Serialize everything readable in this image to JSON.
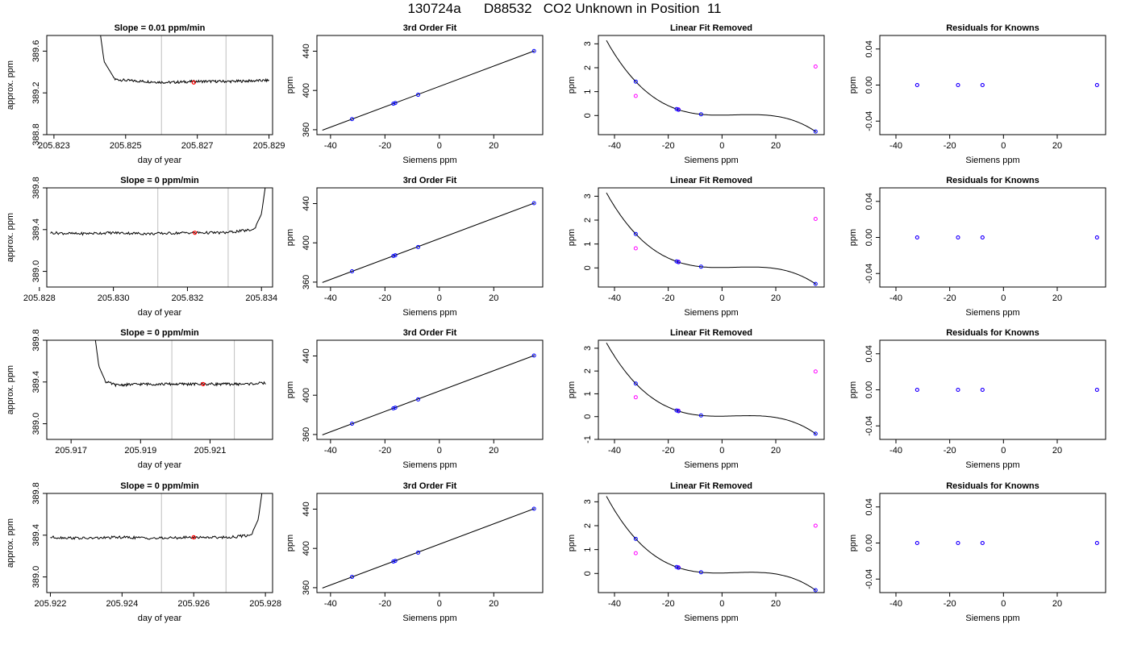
{
  "figure": {
    "title": "130724a      D88532   CO2 Unknown in Position  11"
  },
  "chart_data": [
    {
      "type": "line",
      "title": "Slope =  0.01  ppm/min",
      "xlabel": "day of year",
      "ylabel": "approx. ppm",
      "xlim": [
        205.8228,
        205.8291
      ],
      "ylim": [
        388.8,
        389.75
      ],
      "xticks": [
        "205.823",
        "205.825",
        "205.827",
        "205.829"
      ],
      "yticks": [
        "388.8",
        "389.2",
        "389.6"
      ],
      "vlines": [
        205.826,
        205.8278
      ],
      "flat_level": 389.3,
      "transient": "start",
      "marker": {
        "x": 205.8269,
        "y": 389.3
      },
      "x": [
        205.8243,
        205.8244,
        205.8247,
        205.825,
        205.8255,
        205.8262,
        205.827,
        205.828,
        205.829
      ],
      "y": [
        389.75,
        389.5,
        389.33,
        389.32,
        389.31,
        389.3,
        389.31,
        389.31,
        389.32
      ]
    },
    {
      "type": "scatter+fit",
      "title": "3rd Order Fit",
      "xlabel": "Siemens ppm",
      "ylabel": "ppm",
      "xlim": [
        -45,
        38
      ],
      "ylim": [
        355,
        456
      ],
      "xticks": [
        "-40",
        "-20",
        "0",
        "20"
      ],
      "yticks": [
        "360",
        "400",
        "440"
      ],
      "points_x": [
        -32.1,
        -16.9,
        -16.2,
        -7.8,
        34.8
      ],
      "points_y": [
        370.8,
        386.5,
        387.2,
        395.6,
        440.2
      ],
      "fit_x_range": [
        -43,
        35
      ],
      "fit_y_range": [
        359.5,
        440.4
      ]
    },
    {
      "type": "scatter+fit",
      "title": "Linear Fit Removed",
      "xlabel": "Siemens ppm",
      "ylabel": "ppm",
      "xlim": [
        -46,
        38
      ],
      "ylim": [
        -0.8,
        3.35
      ],
      "xticks": [
        "-40",
        "-20",
        "0",
        "20"
      ],
      "yticks": [
        "0",
        "1",
        "2",
        "3"
      ],
      "points_x": [
        -32.1,
        -16.9,
        -16.2,
        -7.8,
        34.8
      ],
      "points_y": [
        1.42,
        0.27,
        0.24,
        0.05,
        -0.67
      ],
      "pink_x": [
        -32.1,
        -16.2,
        34.8
      ],
      "pink_y": [
        0.82,
        0.26,
        2.05
      ]
    },
    {
      "type": "scatter",
      "title": "Residuals for Knowns",
      "xlabel": "Siemens ppm",
      "ylabel": "ppm",
      "xlim": [
        -46,
        38
      ],
      "ylim": [
        -0.055,
        0.055
      ],
      "xticks": [
        "-40",
        "-20",
        "0",
        "20"
      ],
      "yticks": [
        "-0.04",
        "0.00",
        "0.04"
      ],
      "points_x": [
        -32.1,
        -16.9,
        -7.8,
        34.8
      ],
      "points_y": [
        0,
        0,
        0,
        0
      ]
    },
    {
      "type": "line",
      "title": "Slope =  0  ppm/min",
      "xlabel": "day of year",
      "ylabel": "approx. ppm",
      "xlim": [
        205.8282,
        205.8343
      ],
      "ylim": [
        388.85,
        389.8
      ],
      "xticks": [
        "205.828",
        "205.830",
        "205.832",
        "205.834"
      ],
      "yticks": [
        "389.0",
        "389.4",
        "389.8"
      ],
      "vlines": [
        205.8312,
        205.8331
      ],
      "flat_level": 389.37,
      "transient": "end",
      "marker": {
        "x": 205.8322,
        "y": 389.37
      },
      "x": [
        205.8283,
        205.829,
        205.83,
        205.831,
        205.832,
        205.833,
        205.8338,
        205.834,
        205.8341
      ],
      "y": [
        389.37,
        389.36,
        389.37,
        389.36,
        389.37,
        389.37,
        389.4,
        389.55,
        389.8
      ]
    },
    {
      "type": "scatter+fit",
      "title": "3rd Order Fit",
      "xlabel": "Siemens ppm",
      "ylabel": "ppm",
      "xlim": [
        -45,
        38
      ],
      "ylim": [
        355,
        456
      ],
      "xticks": [
        "-40",
        "-20",
        "0",
        "20"
      ],
      "yticks": [
        "360",
        "400",
        "440"
      ],
      "points_x": [
        -32.1,
        -16.9,
        -16.2,
        -7.8,
        34.8
      ],
      "points_y": [
        371.0,
        386.6,
        387.3,
        395.7,
        440.4
      ],
      "fit_x_range": [
        -43,
        35
      ],
      "fit_y_range": [
        359.6,
        440.6
      ]
    },
    {
      "type": "scatter+fit",
      "title": "Linear Fit Removed",
      "xlabel": "Siemens ppm",
      "ylabel": "ppm",
      "xlim": [
        -46,
        38
      ],
      "ylim": [
        -0.8,
        3.35
      ],
      "xticks": [
        "-40",
        "-20",
        "0",
        "20"
      ],
      "yticks": [
        "0",
        "1",
        "2",
        "3"
      ],
      "points_x": [
        -32.1,
        -16.9,
        -16.2,
        -7.8,
        34.8
      ],
      "points_y": [
        1.42,
        0.27,
        0.24,
        0.05,
        -0.67
      ],
      "pink_x": [
        -32.1,
        -16.2,
        34.8
      ],
      "pink_y": [
        0.82,
        0.26,
        2.05
      ]
    },
    {
      "type": "scatter",
      "title": "Residuals for Knowns",
      "xlabel": "Siemens ppm",
      "ylabel": "ppm",
      "xlim": [
        -46,
        38
      ],
      "ylim": [
        -0.055,
        0.055
      ],
      "xticks": [
        "-40",
        "-20",
        "0",
        "20"
      ],
      "yticks": [
        "-0.04",
        "0.00",
        "0.04"
      ],
      "points_x": [
        -32.1,
        -16.9,
        -7.8,
        34.8
      ],
      "points_y": [
        0,
        0,
        0,
        0
      ]
    },
    {
      "type": "line",
      "title": "Slope =  0  ppm/min",
      "xlabel": "day of year",
      "ylabel": "approx. ppm",
      "xlim": [
        205.9163,
        205.9228
      ],
      "ylim": [
        388.85,
        389.8
      ],
      "xticks": [
        "205.917",
        "205.919",
        "205.921"
      ],
      "yticks": [
        "389.0",
        "389.4",
        "389.8"
      ],
      "vlines": [
        205.9199,
        205.9217
      ],
      "flat_level": 389.38,
      "transient": "start",
      "marker": {
        "x": 205.9208,
        "y": 389.38
      },
      "x": [
        205.9177,
        205.9178,
        205.918,
        205.9183,
        205.919,
        205.92,
        205.921,
        205.922,
        205.9226
      ],
      "y": [
        389.8,
        389.55,
        389.4,
        389.37,
        389.38,
        389.38,
        389.38,
        389.38,
        389.39
      ]
    },
    {
      "type": "scatter+fit",
      "title": "3rd Order Fit",
      "xlabel": "Siemens ppm",
      "ylabel": "ppm",
      "xlim": [
        -45,
        38
      ],
      "ylim": [
        355,
        456
      ],
      "xticks": [
        "-40",
        "-20",
        "0",
        "20"
      ],
      "yticks": [
        "360",
        "400",
        "440"
      ],
      "points_x": [
        -32.1,
        -16.9,
        -16.2,
        -7.8,
        34.8
      ],
      "points_y": [
        371.0,
        386.6,
        387.3,
        395.7,
        440.4
      ],
      "fit_x_range": [
        -43,
        35
      ],
      "fit_y_range": [
        359.6,
        440.6
      ]
    },
    {
      "type": "scatter+fit",
      "title": "Linear Fit Removed",
      "xlabel": "Siemens ppm",
      "ylabel": "ppm",
      "xlim": [
        -46,
        38
      ],
      "ylim": [
        -1.0,
        3.35
      ],
      "xticks": [
        "-40",
        "-20",
        "0",
        "20"
      ],
      "yticks": [
        "-1",
        "0",
        "1",
        "2",
        "3"
      ],
      "points_x": [
        -32.1,
        -16.9,
        -16.2,
        -7.8,
        34.8
      ],
      "points_y": [
        1.45,
        0.27,
        0.24,
        0.05,
        -0.75
      ],
      "pink_x": [
        -32.1,
        -16.2,
        34.8
      ],
      "pink_y": [
        0.85,
        0.26,
        1.98
      ]
    },
    {
      "type": "scatter",
      "title": "Residuals for Knowns",
      "xlabel": "Siemens ppm",
      "ylabel": "ppm",
      "xlim": [
        -46,
        38
      ],
      "ylim": [
        -0.055,
        0.055
      ],
      "xticks": [
        "-40",
        "-20",
        "0",
        "20"
      ],
      "yticks": [
        "-0.04",
        "0.00",
        "0.04"
      ],
      "points_x": [
        -32.1,
        -16.9,
        -7.8,
        34.8
      ],
      "points_y": [
        0,
        0,
        0,
        0
      ]
    },
    {
      "type": "line",
      "title": "Slope =  0  ppm/min",
      "xlabel": "day of year",
      "ylabel": "approx. ppm",
      "xlim": [
        205.9219,
        205.9282
      ],
      "ylim": [
        388.85,
        389.8
      ],
      "xticks": [
        "205.922",
        "205.924",
        "205.926",
        "205.928"
      ],
      "yticks": [
        "389.0",
        "389.4",
        "389.8"
      ],
      "vlines": [
        205.9251,
        205.9269
      ],
      "flat_level": 389.38,
      "transient": "end",
      "marker": {
        "x": 205.926,
        "y": 389.38
      },
      "x": [
        205.922,
        205.923,
        205.924,
        205.925,
        205.926,
        205.927,
        205.9276,
        205.9278,
        205.9279
      ],
      "y": [
        389.38,
        389.37,
        389.38,
        389.37,
        389.38,
        389.38,
        389.4,
        389.55,
        389.8
      ]
    },
    {
      "type": "scatter+fit",
      "title": "3rd Order Fit",
      "xlabel": "Siemens ppm",
      "ylabel": "ppm",
      "xlim": [
        -45,
        38
      ],
      "ylim": [
        355,
        456
      ],
      "xticks": [
        "-40",
        "-20",
        "0",
        "20"
      ],
      "yticks": [
        "360",
        "400",
        "440"
      ],
      "points_x": [
        -32.1,
        -16.9,
        -16.2,
        -7.8,
        34.8
      ],
      "points_y": [
        371.0,
        386.6,
        387.3,
        395.7,
        440.4
      ],
      "fit_x_range": [
        -43,
        35
      ],
      "fit_y_range": [
        359.6,
        440.6
      ]
    },
    {
      "type": "scatter+fit",
      "title": "Linear Fit Removed",
      "xlabel": "Siemens ppm",
      "ylabel": "ppm",
      "xlim": [
        -46,
        38
      ],
      "ylim": [
        -0.8,
        3.35
      ],
      "xticks": [
        "-40",
        "-20",
        "0",
        "20"
      ],
      "yticks": [
        "0",
        "1",
        "2",
        "3"
      ],
      "points_x": [
        -32.1,
        -16.9,
        -16.2,
        -7.8,
        34.8
      ],
      "points_y": [
        1.45,
        0.27,
        0.24,
        0.05,
        -0.7
      ],
      "pink_x": [
        -32.1,
        -16.2,
        34.8
      ],
      "pink_y": [
        0.85,
        0.26,
        2.0
      ]
    },
    {
      "type": "scatter",
      "title": "Residuals for Knowns",
      "xlabel": "Siemens ppm",
      "ylabel": "ppm",
      "xlim": [
        -46,
        38
      ],
      "ylim": [
        -0.055,
        0.055
      ],
      "xticks": [
        "-40",
        "-20",
        "0",
        "20"
      ],
      "yticks": [
        "-0.04",
        "0.00",
        "0.04"
      ],
      "points_x": [
        -32.1,
        -16.9,
        -7.8,
        34.8
      ],
      "points_y": [
        0,
        0,
        0,
        0
      ]
    }
  ],
  "colors": {
    "line": "#000000",
    "vline": "#bebebe",
    "marker": "#ff0000",
    "point": "#0000ff",
    "point_alt": "#ff00ff"
  }
}
